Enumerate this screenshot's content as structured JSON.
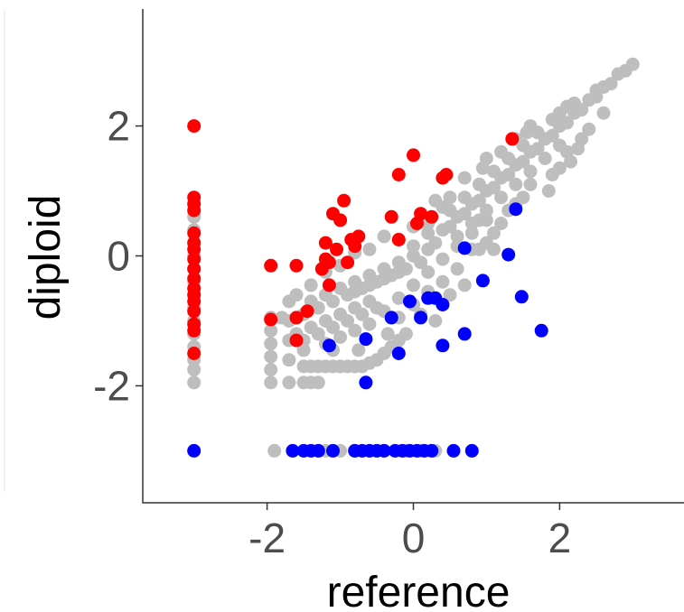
{
  "chart_data": {
    "type": "scatter",
    "title": "",
    "xlabel": "reference",
    "ylabel": "diploid",
    "xlim": [
      -3.7,
      3.7
    ],
    "ylim": [
      -3.8,
      3.8
    ],
    "x_ticks": [
      -2,
      0,
      2
    ],
    "y_ticks": [
      -2,
      0,
      2
    ],
    "x_tick_labels": [
      "-2",
      "0",
      "2"
    ],
    "y_tick_labels": [
      "-2",
      "0",
      "2"
    ],
    "grid": false,
    "legend": "none",
    "colors": {
      "neutral": "#bebebe",
      "up": "#ff0000",
      "down": "#0000ff",
      "axis": "#333333",
      "tick_text": "#4d4d4d"
    },
    "series": [
      {
        "color": "#bebebe",
        "points": [
          [
            -3.0,
            0.8
          ],
          [
            -3.0,
            0.6
          ],
          [
            -3.0,
            0.4
          ],
          [
            -3.0,
            0.2
          ],
          [
            -3.0,
            0.0
          ],
          [
            -3.0,
            -0.2
          ],
          [
            -3.0,
            -0.4
          ],
          [
            -3.0,
            -0.6
          ],
          [
            -3.0,
            -0.8
          ],
          [
            -3.0,
            -1.0
          ],
          [
            -3.0,
            -1.2
          ],
          [
            -3.0,
            -1.4
          ],
          [
            -3.0,
            -1.6
          ],
          [
            -3.0,
            -1.75
          ],
          [
            -3.0,
            -1.95
          ],
          [
            -1.95,
            -0.95
          ],
          [
            -1.95,
            -1.15
          ],
          [
            -1.95,
            -1.35
          ],
          [
            -1.95,
            -1.55
          ],
          [
            -1.95,
            -1.75
          ],
          [
            -1.95,
            -1.95
          ],
          [
            -1.7,
            -0.7
          ],
          [
            -1.7,
            -1.0
          ],
          [
            -1.7,
            -1.3
          ],
          [
            -1.7,
            -1.6
          ],
          [
            -1.7,
            -1.95
          ],
          [
            -1.5,
            -1.95
          ],
          [
            -1.4,
            -1.95
          ],
          [
            -1.3,
            -1.95
          ],
          [
            -1.5,
            -1.7
          ],
          [
            -1.4,
            -1.7
          ],
          [
            -1.3,
            -1.7
          ],
          [
            -1.2,
            -1.7
          ],
          [
            -1.1,
            -1.7
          ],
          [
            -1.0,
            -1.7
          ],
          [
            -0.9,
            -1.7
          ],
          [
            -0.8,
            -1.7
          ],
          [
            -0.7,
            -1.7
          ],
          [
            -0.6,
            -1.65
          ],
          [
            -0.5,
            -1.6
          ],
          [
            -0.4,
            -1.5
          ],
          [
            -0.3,
            -1.4
          ],
          [
            -0.2,
            -1.3
          ],
          [
            -0.1,
            -1.2
          ],
          [
            -1.6,
            -1.2
          ],
          [
            -1.5,
            -1.3
          ],
          [
            -1.4,
            -1.1
          ],
          [
            -1.3,
            -1.2
          ],
          [
            -1.2,
            -1.0
          ],
          [
            -1.1,
            -1.1
          ],
          [
            -1.0,
            -0.9
          ],
          [
            -0.9,
            -1.0
          ],
          [
            -0.8,
            -0.8
          ],
          [
            -0.7,
            -0.9
          ],
          [
            -0.6,
            -0.7
          ],
          [
            -0.5,
            -0.8
          ],
          [
            -1.5,
            -0.9
          ],
          [
            -1.4,
            -0.7
          ],
          [
            -1.3,
            -0.8
          ],
          [
            -1.2,
            -0.6
          ],
          [
            -1.1,
            -0.7
          ],
          [
            -1.0,
            -0.5
          ],
          [
            -0.9,
            -0.6
          ],
          [
            -0.8,
            -0.4
          ],
          [
            -0.7,
            -0.5
          ],
          [
            -0.6,
            -0.3
          ],
          [
            -0.5,
            -0.4
          ],
          [
            -0.4,
            -0.2
          ],
          [
            -0.3,
            -0.3
          ],
          [
            -0.2,
            -0.1
          ],
          [
            -0.1,
            -0.2
          ],
          [
            0.0,
            0.0
          ],
          [
            0.1,
            -0.1
          ],
          [
            0.2,
            0.1
          ],
          [
            -1.2,
            -1.35
          ],
          [
            -1.0,
            -1.25
          ],
          [
            -0.8,
            -1.15
          ],
          [
            -0.6,
            -1.05
          ],
          [
            -0.4,
            -0.85
          ],
          [
            -0.2,
            -0.65
          ],
          [
            0.0,
            -0.45
          ],
          [
            0.2,
            -0.25
          ],
          [
            0.4,
            -0.05
          ],
          [
            0.6,
            0.15
          ],
          [
            0.8,
            0.35
          ],
          [
            1.0,
            0.55
          ],
          [
            -0.8,
            -0.55
          ],
          [
            -0.6,
            -0.45
          ],
          [
            -0.4,
            -0.35
          ],
          [
            -0.2,
            -0.25
          ],
          [
            0.0,
            0.15
          ],
          [
            0.2,
            0.35
          ],
          [
            0.3,
            0.2
          ],
          [
            0.4,
            0.4
          ],
          [
            0.5,
            0.45
          ],
          [
            0.6,
            0.6
          ],
          [
            0.7,
            0.65
          ],
          [
            0.8,
            0.8
          ],
          [
            0.9,
            0.85
          ],
          [
            1.0,
            1.0
          ],
          [
            1.1,
            1.05
          ],
          [
            1.2,
            1.2
          ],
          [
            1.3,
            1.25
          ],
          [
            1.4,
            1.4
          ],
          [
            1.5,
            1.45
          ],
          [
            1.6,
            1.6
          ],
          [
            1.7,
            1.65
          ],
          [
            1.8,
            1.8
          ],
          [
            1.9,
            1.85
          ],
          [
            2.0,
            2.0
          ],
          [
            2.1,
            2.05
          ],
          [
            2.2,
            2.2
          ],
          [
            2.3,
            2.25
          ],
          [
            2.4,
            2.4
          ],
          [
            2.5,
            2.45
          ],
          [
            2.6,
            2.6
          ],
          [
            2.7,
            2.65
          ],
          [
            2.8,
            2.8
          ],
          [
            2.9,
            2.85
          ],
          [
            3.0,
            2.95
          ],
          [
            2.2,
            2.35
          ],
          [
            2.5,
            2.55
          ],
          [
            0.5,
            0.7
          ],
          [
            0.7,
            0.9
          ],
          [
            0.9,
            1.1
          ],
          [
            1.1,
            1.3
          ],
          [
            1.3,
            1.5
          ],
          [
            1.5,
            1.7
          ],
          [
            1.7,
            1.9
          ],
          [
            1.9,
            2.1
          ],
          [
            2.1,
            2.3
          ],
          [
            1.6,
            2.0
          ],
          [
            1.4,
            1.8
          ],
          [
            1.2,
            1.6
          ],
          [
            0.6,
            0.3
          ],
          [
            0.8,
            0.5
          ],
          [
            1.0,
            0.7
          ],
          [
            1.2,
            0.9
          ],
          [
            1.4,
            1.1
          ],
          [
            1.6,
            1.3
          ],
          [
            1.8,
            1.5
          ],
          [
            2.0,
            1.7
          ],
          [
            1.5,
            0.9
          ],
          [
            1.6,
            1.1
          ],
          [
            1.3,
            0.7
          ],
          [
            2.1,
            1.6
          ],
          [
            1.0,
            0.2
          ],
          [
            0.8,
            0.1
          ],
          [
            1.2,
            0.5
          ],
          [
            1.4,
            0.8
          ],
          [
            1.1,
            0.35
          ],
          [
            0.9,
            0.55
          ],
          [
            2.0,
            1.35
          ],
          [
            2.25,
            1.65
          ],
          [
            2.4,
            1.95
          ],
          [
            2.6,
            2.2
          ],
          [
            2.15,
            1.45
          ],
          [
            1.9,
            1.25
          ],
          [
            -1.4,
            -0.45
          ],
          [
            -1.2,
            -0.25
          ],
          [
            -1.0,
            -0.15
          ],
          [
            -0.8,
            0.05
          ],
          [
            -0.6,
            0.1
          ],
          [
            -0.4,
            0.3
          ],
          [
            -0.2,
            0.25
          ],
          [
            0.0,
            0.45
          ],
          [
            0.2,
            0.5
          ],
          [
            0.4,
            0.75
          ],
          [
            0.5,
            0.9
          ],
          [
            0.3,
            0.85
          ],
          [
            1.85,
            1.0
          ],
          [
            2.3,
            1.8
          ],
          [
            2.0,
            2.2
          ],
          [
            1.55,
            1.9
          ],
          [
            0.95,
            1.35
          ],
          [
            1.0,
            1.5
          ],
          [
            0.0,
            -0.75
          ],
          [
            0.2,
            -0.55
          ],
          [
            -0.2,
            -0.95
          ],
          [
            0.4,
            -0.4
          ],
          [
            0.6,
            -0.2
          ],
          [
            0.1,
            -0.9
          ],
          [
            -1.6,
            -0.6
          ],
          [
            -1.8,
            -0.95
          ],
          [
            -1.5,
            -1.45
          ],
          [
            -1.1,
            -1.45
          ],
          [
            -0.75,
            -1.45
          ],
          [
            -0.35,
            -1.2
          ],
          [
            0.3,
            -1.0
          ],
          [
            0.5,
            -0.6
          ],
          [
            0.7,
            -0.45
          ],
          [
            0.9,
            0.1
          ],
          [
            1.1,
            0.1
          ],
          [
            0.7,
            1.2
          ],
          [
            -1.2,
            -3.0
          ],
          [
            -1.0,
            -3.0
          ],
          [
            -0.8,
            -3.0
          ],
          [
            -0.6,
            -3.0
          ],
          [
            -0.5,
            -3.0
          ],
          [
            -0.4,
            -3.0
          ],
          [
            -1.9,
            -3.0
          ],
          [
            -1.3,
            -3.0
          ],
          [
            -0.1,
            -3.0
          ],
          [
            0.1,
            -3.0
          ],
          [
            0.3,
            -3.0
          ]
        ]
      },
      {
        "color": "#ff0000",
        "points": [
          [
            -3.0,
            2.0
          ],
          [
            -3.0,
            0.9
          ],
          [
            -3.0,
            0.8
          ],
          [
            -3.0,
            0.7
          ],
          [
            -3.0,
            0.35
          ],
          [
            -3.0,
            0.2
          ],
          [
            -3.0,
            0.1
          ],
          [
            -3.0,
            -0.05
          ],
          [
            -3.0,
            -0.2
          ],
          [
            -3.0,
            -0.35
          ],
          [
            -3.0,
            -0.5
          ],
          [
            -3.0,
            -0.6
          ],
          [
            -3.0,
            -0.7
          ],
          [
            -3.0,
            -0.85
          ],
          [
            -3.0,
            -1.05
          ],
          [
            -3.0,
            -1.15
          ],
          [
            -3.0,
            -1.5
          ],
          [
            -1.95,
            -0.15
          ],
          [
            -1.95,
            -0.98
          ],
          [
            -1.6,
            -0.15
          ],
          [
            -1.6,
            -0.95
          ],
          [
            -1.6,
            -1.3
          ],
          [
            -1.45,
            -0.85
          ],
          [
            -1.25,
            -0.2
          ],
          [
            -1.2,
            -0.05
          ],
          [
            -1.2,
            0.2
          ],
          [
            -1.15,
            -0.1
          ],
          [
            -1.15,
            -0.45
          ],
          [
            -1.1,
            0.65
          ],
          [
            -1.05,
            0.1
          ],
          [
            -1.0,
            0.55
          ],
          [
            -0.95,
            0.85
          ],
          [
            -0.9,
            -0.1
          ],
          [
            -0.85,
            0.25
          ],
          [
            -0.8,
            0.15
          ],
          [
            -0.75,
            0.3
          ],
          [
            -0.3,
            0.6
          ],
          [
            -0.2,
            0.25
          ],
          [
            -0.2,
            1.25
          ],
          [
            0.0,
            1.55
          ],
          [
            0.05,
            0.5
          ],
          [
            0.1,
            0.65
          ],
          [
            0.25,
            0.6
          ],
          [
            0.45,
            1.25
          ],
          [
            0.4,
            1.2
          ],
          [
            1.35,
            1.8
          ]
        ]
      },
      {
        "color": "#0000ff",
        "points": [
          [
            -3.0,
            -3.0
          ],
          [
            -1.65,
            -3.0
          ],
          [
            -1.5,
            -3.0
          ],
          [
            -1.4,
            -3.0
          ],
          [
            -1.3,
            -3.0
          ],
          [
            -1.1,
            -3.0
          ],
          [
            -0.8,
            -3.0
          ],
          [
            -0.7,
            -3.0
          ],
          [
            -0.6,
            -3.0
          ],
          [
            -0.5,
            -3.0
          ],
          [
            -0.4,
            -3.0
          ],
          [
            -0.25,
            -3.0
          ],
          [
            -0.15,
            -3.0
          ],
          [
            -0.05,
            -3.0
          ],
          [
            0.05,
            -3.0
          ],
          [
            0.15,
            -3.0
          ],
          [
            0.25,
            -3.0
          ],
          [
            0.55,
            -3.0
          ],
          [
            0.8,
            -3.0
          ],
          [
            -1.15,
            -1.38
          ],
          [
            -0.65,
            -1.28
          ],
          [
            -0.65,
            -1.95
          ],
          [
            -0.3,
            -0.95
          ],
          [
            -0.2,
            -1.5
          ],
          [
            -0.05,
            -0.7
          ],
          [
            0.1,
            -0.95
          ],
          [
            0.2,
            -0.65
          ],
          [
            0.3,
            -0.65
          ],
          [
            0.4,
            -0.75
          ],
          [
            0.4,
            -1.38
          ],
          [
            0.7,
            -1.2
          ],
          [
            0.7,
            0.12
          ],
          [
            0.95,
            -0.38
          ],
          [
            1.3,
            0.02
          ],
          [
            1.4,
            0.72
          ],
          [
            1.48,
            -0.63
          ],
          [
            1.75,
            -1.15
          ]
        ]
      }
    ]
  }
}
